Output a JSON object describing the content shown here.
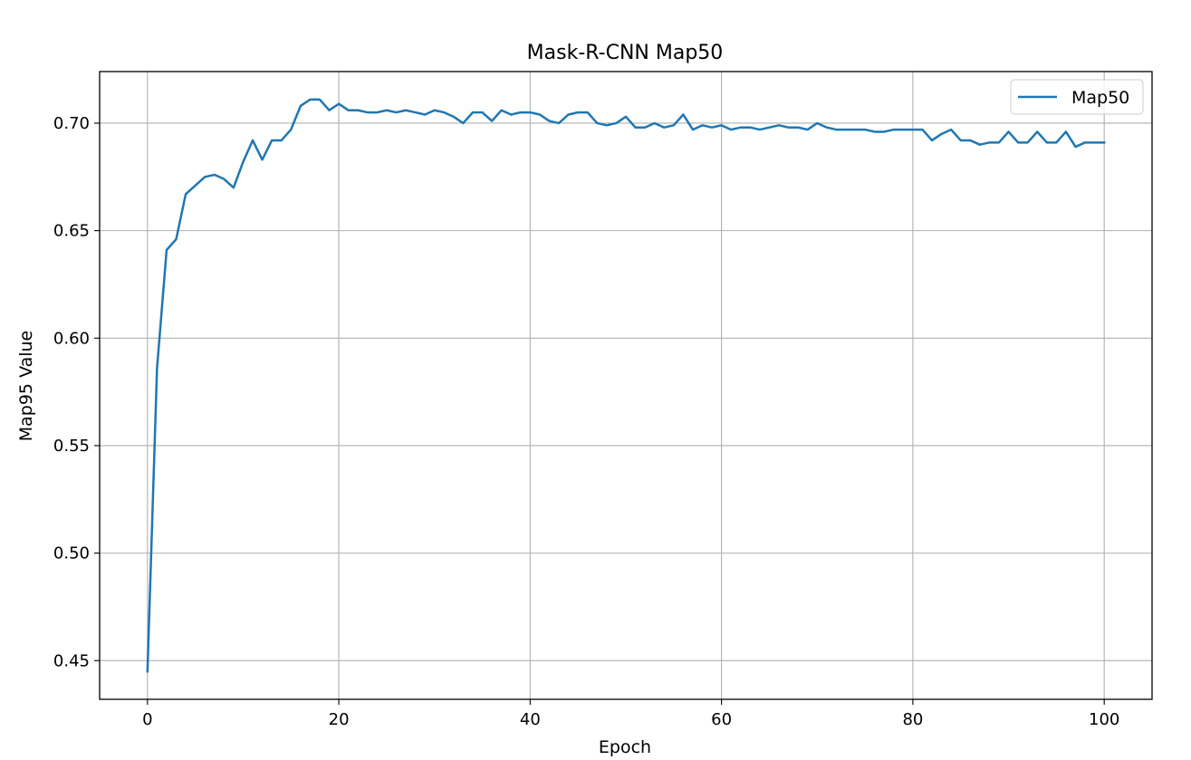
{
  "chart_data": {
    "type": "line",
    "title": "Mask-R-CNN Map50",
    "xlabel": "Epoch",
    "ylabel": "Map95 Value",
    "xlim": [
      -5,
      105
    ],
    "ylim": [
      0.432,
      0.724
    ],
    "xticks": [
      0,
      20,
      40,
      60,
      80,
      100
    ],
    "yticks": [
      0.45,
      0.5,
      0.55,
      0.6,
      0.65,
      0.7
    ],
    "ytick_labels": [
      "0.45",
      "0.50",
      "0.55",
      "0.60",
      "0.65",
      "0.70"
    ],
    "grid": true,
    "legend_position": "top-right",
    "series": [
      {
        "name": "Map50",
        "color": "#1f77b4",
        "x": [
          0,
          1,
          2,
          3,
          4,
          5,
          6,
          7,
          8,
          9,
          10,
          11,
          12,
          13,
          14,
          15,
          16,
          17,
          18,
          19,
          20,
          21,
          22,
          23,
          24,
          25,
          26,
          27,
          28,
          29,
          30,
          31,
          32,
          33,
          34,
          35,
          36,
          37,
          38,
          39,
          40,
          41,
          42,
          43,
          44,
          45,
          46,
          47,
          48,
          49,
          50,
          51,
          52,
          53,
          54,
          55,
          56,
          57,
          58,
          59,
          60,
          61,
          62,
          63,
          64,
          65,
          66,
          67,
          68,
          69,
          70,
          71,
          72,
          73,
          74,
          75,
          76,
          77,
          78,
          79,
          80,
          81,
          82,
          83,
          84,
          85,
          86,
          87,
          88,
          89,
          90,
          91,
          92,
          93,
          94,
          95,
          96,
          97,
          98,
          99,
          100
        ],
        "values": [
          0.445,
          0.586,
          0.641,
          0.646,
          0.667,
          0.671,
          0.675,
          0.676,
          0.674,
          0.67,
          0.682,
          0.692,
          0.683,
          0.692,
          0.692,
          0.697,
          0.708,
          0.711,
          0.711,
          0.706,
          0.709,
          0.706,
          0.706,
          0.705,
          0.705,
          0.706,
          0.705,
          0.706,
          0.705,
          0.704,
          0.706,
          0.705,
          0.703,
          0.7,
          0.705,
          0.705,
          0.701,
          0.706,
          0.704,
          0.705,
          0.705,
          0.704,
          0.701,
          0.7,
          0.704,
          0.705,
          0.705,
          0.7,
          0.699,
          0.7,
          0.703,
          0.698,
          0.698,
          0.7,
          0.698,
          0.699,
          0.704,
          0.697,
          0.699,
          0.698,
          0.699,
          0.697,
          0.698,
          0.698,
          0.697,
          0.698,
          0.699,
          0.698,
          0.698,
          0.697,
          0.7,
          0.698,
          0.697,
          0.697,
          0.697,
          0.697,
          0.696,
          0.696,
          0.697,
          0.697,
          0.697,
          0.697,
          0.692,
          0.695,
          0.697,
          0.692,
          0.692,
          0.69,
          0.691,
          0.691,
          0.696,
          0.691,
          0.691,
          0.696,
          0.691,
          0.691,
          0.696,
          0.689,
          0.691,
          0.691,
          0.691
        ]
      }
    ]
  }
}
